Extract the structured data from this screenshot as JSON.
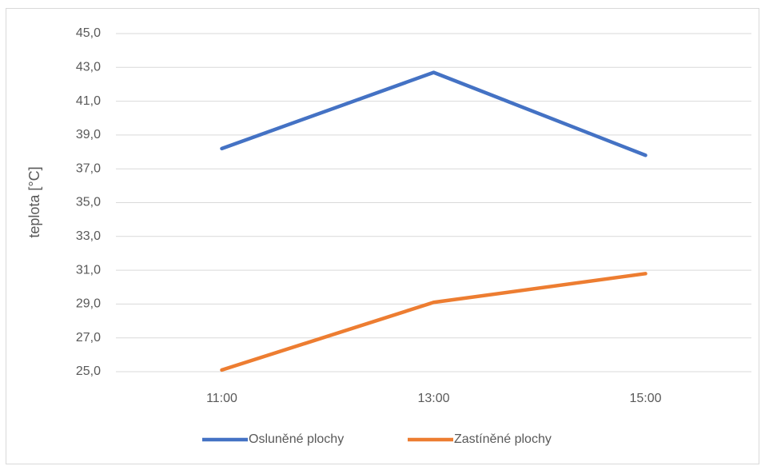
{
  "chart_data": {
    "type": "line",
    "ylabel": "teplota [°C]",
    "categories": [
      "11:00",
      "13:00",
      "15:00"
    ],
    "series": [
      {
        "name": "Osluněné plochy",
        "color": "#4472c4",
        "values": [
          38.2,
          42.7,
          37.8
        ]
      },
      {
        "name": "Zastíněné plochy",
        "color": "#ed7d31",
        "values": [
          25.1,
          29.1,
          30.8
        ]
      }
    ],
    "ylim": [
      25,
      45
    ],
    "yticks": [
      {
        "value": 25,
        "label": "25,0"
      },
      {
        "value": 27,
        "label": "27,0"
      },
      {
        "value": 29,
        "label": "29,0"
      },
      {
        "value": 31,
        "label": "31,0"
      },
      {
        "value": 33,
        "label": "33,0"
      },
      {
        "value": 35,
        "label": "35,0"
      },
      {
        "value": 37,
        "label": "37,0"
      },
      {
        "value": 39,
        "label": "39,0"
      },
      {
        "value": 41,
        "label": "41,0"
      },
      {
        "value": 43,
        "label": "43,0"
      },
      {
        "value": 45,
        "label": "45,0"
      }
    ],
    "grid": true
  }
}
